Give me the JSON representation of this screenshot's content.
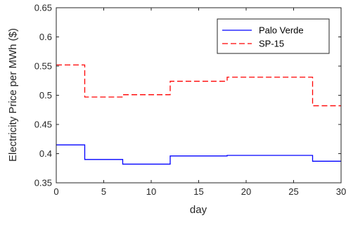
{
  "chart_data": {
    "type": "line",
    "title": "",
    "xlabel": "day",
    "ylabel": "Electricity Price per MWh ($)",
    "xlim": [
      0,
      30
    ],
    "ylim": [
      0.35,
      0.65
    ],
    "xticks": [
      0,
      5,
      10,
      15,
      20,
      25,
      30
    ],
    "yticks": [
      0.35,
      0.4,
      0.45,
      0.5,
      0.55,
      0.6,
      0.65
    ],
    "xtick_labels": [
      "0",
      "5",
      "10",
      "15",
      "20",
      "25",
      "30"
    ],
    "ytick_labels": [
      "0.35",
      "0.4",
      "0.45",
      "0.5",
      "0.55",
      "0.6",
      "0.65"
    ],
    "grid": false,
    "legend_position": "top-right",
    "series": [
      {
        "name": "Palo Verde",
        "color": "#0000ff",
        "style": "solid",
        "step_x": [
          0,
          3,
          7,
          12,
          18,
          27,
          30
        ],
        "step_y": [
          0.415,
          0.39,
          0.382,
          0.396,
          0.397,
          0.387
        ]
      },
      {
        "name": "SP-15",
        "color": "#ff0000",
        "style": "dashed",
        "step_x": [
          0,
          3,
          7,
          12,
          18,
          27,
          30
        ],
        "step_y": [
          0.552,
          0.497,
          0.501,
          0.524,
          0.531,
          0.482
        ]
      }
    ]
  }
}
